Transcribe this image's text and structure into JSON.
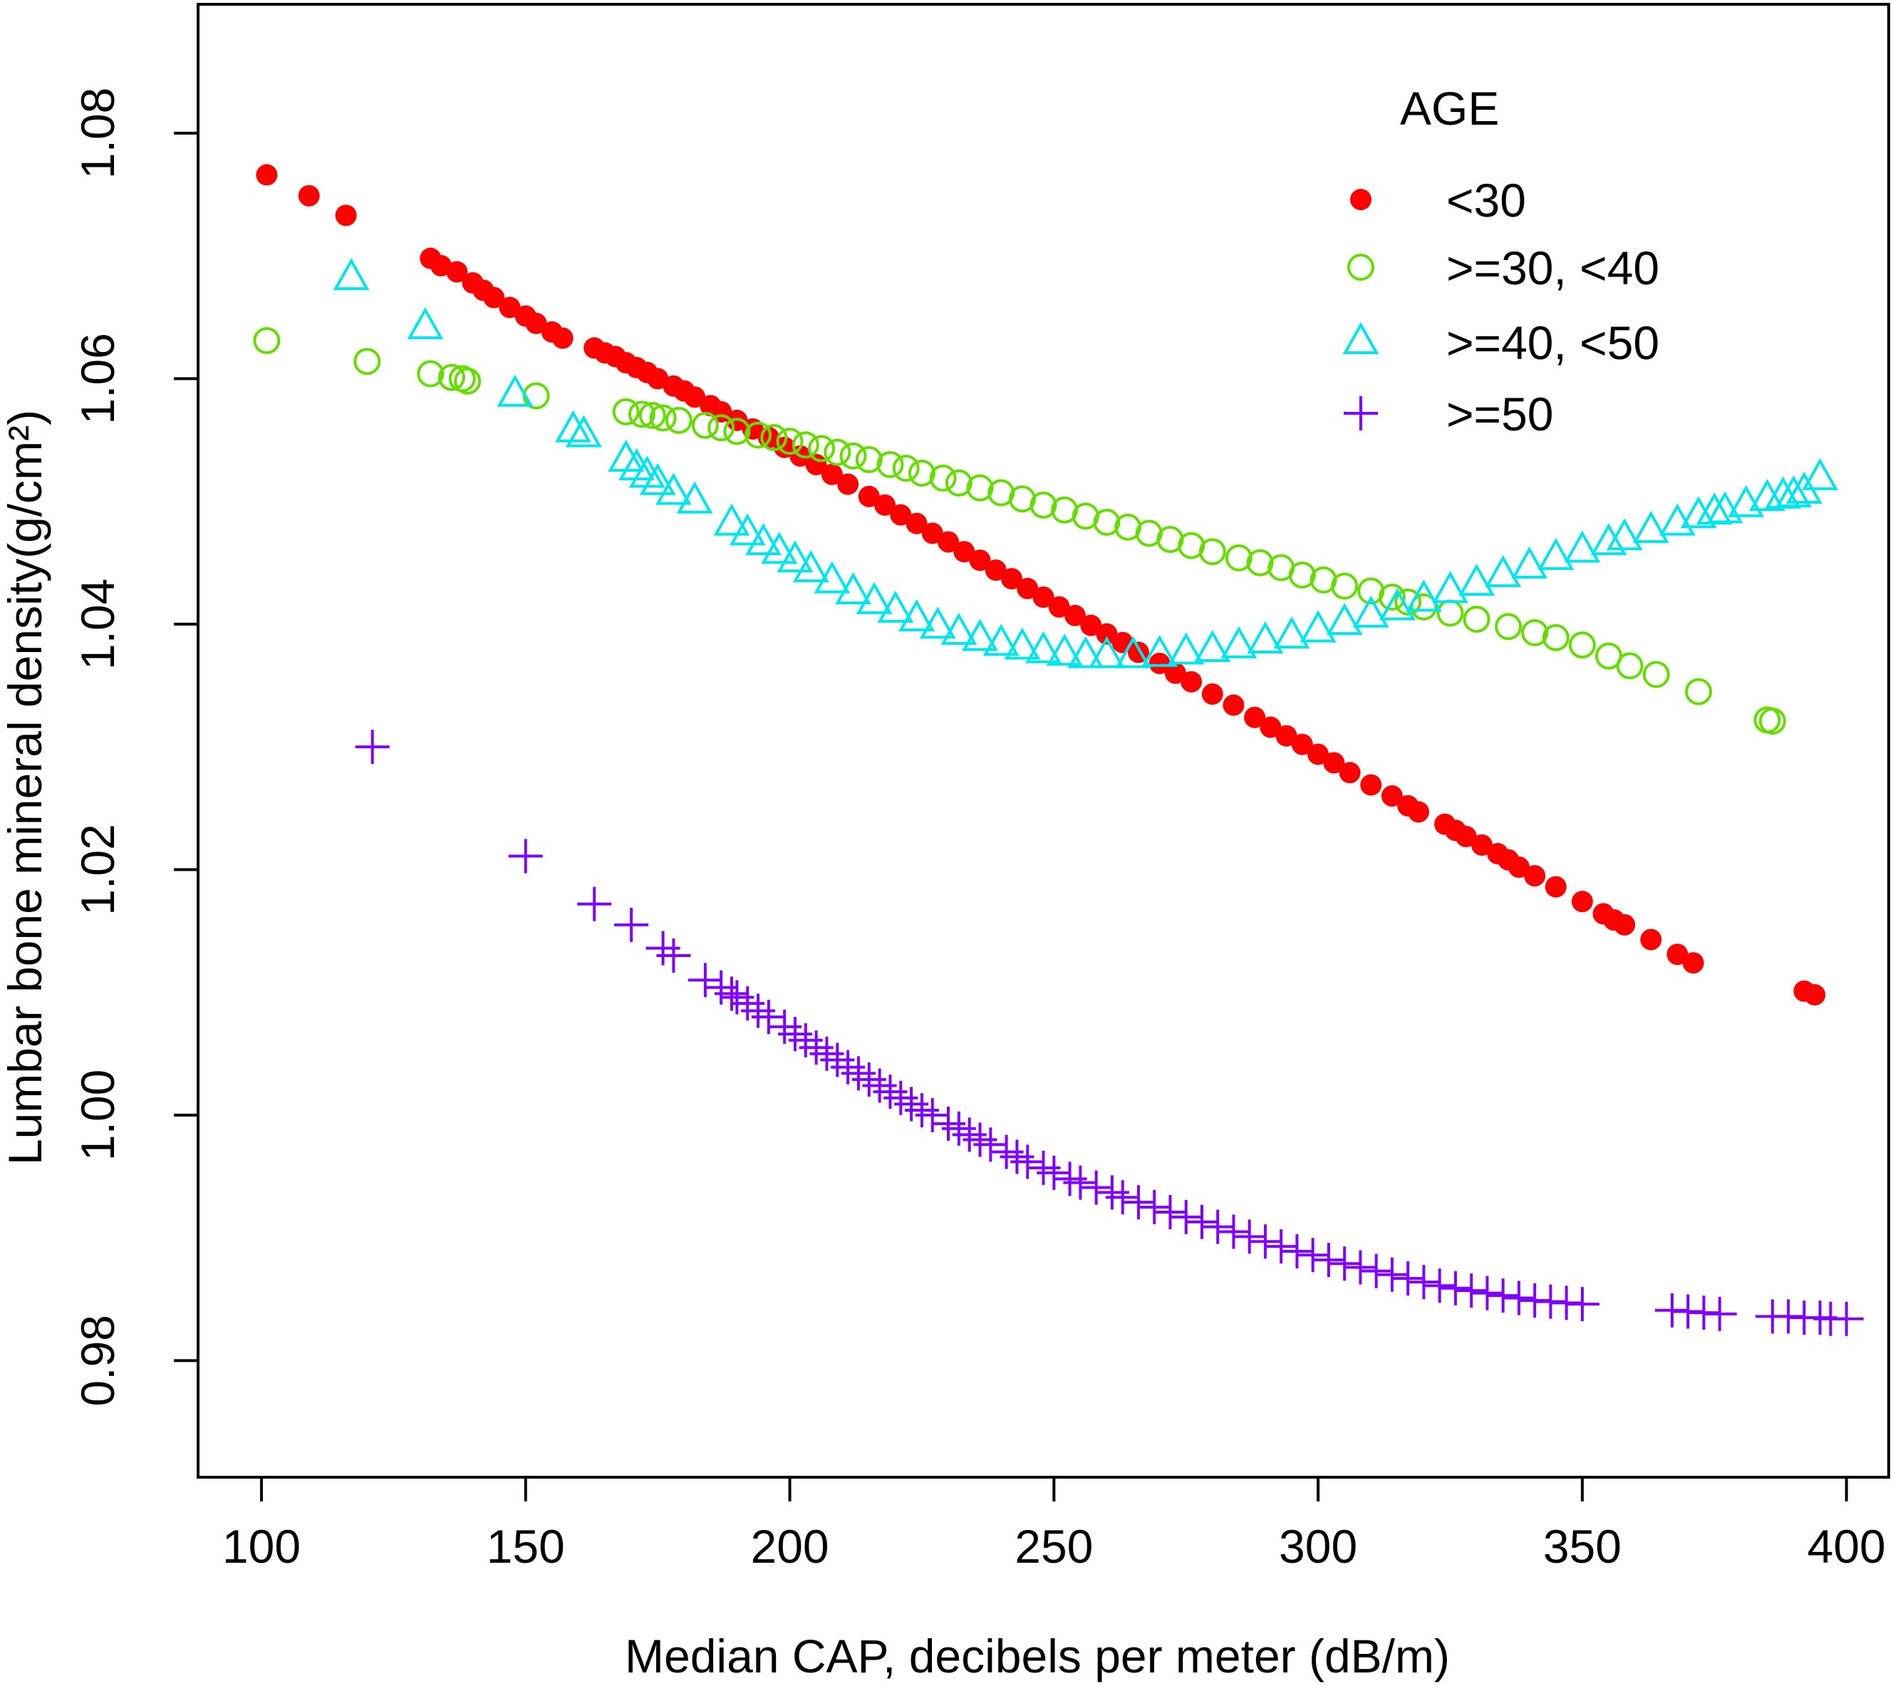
{
  "chart_data": {
    "type": "scatter",
    "title": "",
    "xlabel": "Median CAP, decibels per meter (dB/m)",
    "ylabel": "Lumbar bone mineral density(g/cm²)",
    "xlim": [
      88,
      408
    ],
    "ylim": [
      0.9705,
      1.0905
    ],
    "x_ticks": [
      100,
      150,
      200,
      250,
      300,
      350,
      400
    ],
    "x_tick_labels": [
      "100",
      "150",
      "200",
      "250",
      "300",
      "350",
      "400"
    ],
    "y_ticks": [
      0.98,
      1.0,
      1.02,
      1.04,
      1.06,
      1.08
    ],
    "y_tick_labels": [
      "0.98",
      "1.00",
      "1.02",
      "1.04",
      "1.06",
      "1.08"
    ],
    "grid": false,
    "legend": {
      "title": "AGE",
      "position": "top-right",
      "entries": [
        "<30",
        ">=30, <40",
        ">=40, <50",
        ">=50"
      ]
    },
    "series": [
      {
        "name": "<30",
        "marker": "filled-circle",
        "color": "#ff0000",
        "x": [
          101,
          109,
          116,
          132,
          134,
          137,
          140,
          142,
          144,
          147,
          150,
          152,
          155,
          157,
          163,
          165,
          167,
          169,
          171,
          173,
          175,
          178,
          180,
          182,
          185,
          187,
          190,
          193,
          196,
          199,
          202,
          205,
          208,
          211,
          215,
          218,
          221,
          224,
          227,
          230,
          233,
          236,
          239,
          242,
          245,
          248,
          251,
          254,
          257,
          260,
          263,
          266,
          270,
          273,
          276,
          280,
          284,
          288,
          291,
          294,
          297,
          300,
          303,
          306,
          310,
          314,
          317,
          319,
          324,
          326,
          328,
          331,
          334,
          336,
          338,
          341,
          345,
          350,
          354,
          356,
          358,
          363,
          368,
          371,
          392,
          394
        ],
        "values": [
          1.0766,
          1.0749,
          1.0733,
          1.0698,
          1.0692,
          1.0687,
          1.0678,
          1.0672,
          1.0666,
          1.0658,
          1.0651,
          1.0645,
          1.0638,
          1.0633,
          1.0625,
          1.0621,
          1.0618,
          1.0613,
          1.0609,
          1.0605,
          1.06,
          1.0594,
          1.059,
          1.0585,
          1.0578,
          1.0573,
          1.0566,
          1.0559,
          1.0552,
          1.0544,
          1.0537,
          1.053,
          1.0522,
          1.0514,
          1.0504,
          1.0497,
          1.0489,
          1.0482,
          1.0474,
          1.0467,
          1.0459,
          1.0452,
          1.0444,
          1.0437,
          1.0429,
          1.0422,
          1.0414,
          1.0407,
          1.0399,
          1.0392,
          1.0385,
          1.0377,
          1.0368,
          1.036,
          1.0353,
          1.0343,
          1.0334,
          1.0324,
          1.0316,
          1.0309,
          1.0302,
          1.0294,
          1.0287,
          1.0279,
          1.0269,
          1.026,
          1.0252,
          1.0247,
          1.0237,
          1.0232,
          1.0227,
          1.022,
          1.0213,
          1.0208,
          1.0202,
          1.0195,
          1.0186,
          1.0174,
          1.0164,
          1.0159,
          1.0155,
          1.0143,
          1.0131,
          1.0124,
          1.0101,
          1.0098
        ]
      },
      {
        "name": ">=30, <40",
        "marker": "open-circle",
        "color": "#66dd00",
        "x": [
          101,
          120,
          132,
          136,
          138,
          139,
          152,
          169,
          172,
          174,
          176,
          179,
          184,
          187,
          190,
          194,
          197,
          200,
          203,
          206,
          209,
          212,
          215,
          219,
          222,
          225,
          229,
          232,
          236,
          240,
          244,
          248,
          252,
          256,
          260,
          264,
          268,
          272,
          276,
          280,
          285,
          289,
          293,
          297,
          301,
          305,
          310,
          314,
          317,
          320,
          325,
          330,
          336,
          341,
          345,
          350,
          355,
          359,
          364,
          372,
          385,
          386
        ],
        "values": [
          1.0631,
          1.0614,
          1.0604,
          1.0601,
          1.06,
          1.0598,
          1.0586,
          1.0573,
          1.0571,
          1.057,
          1.0568,
          1.0566,
          1.0562,
          1.056,
          1.0557,
          1.0554,
          1.0552,
          1.0549,
          1.0546,
          1.0543,
          1.054,
          1.0537,
          1.0534,
          1.053,
          1.0527,
          1.0523,
          1.0519,
          1.0515,
          1.0511,
          1.0507,
          1.0502,
          1.0497,
          1.0493,
          1.0488,
          1.0483,
          1.0479,
          1.0474,
          1.0469,
          1.0464,
          1.0459,
          1.0454,
          1.045,
          1.0446,
          1.044,
          1.0436,
          1.0431,
          1.0427,
          1.0422,
          1.0418,
          1.0414,
          1.0409,
          1.0404,
          1.0398,
          1.0393,
          1.0389,
          1.0383,
          1.0374,
          1.0366,
          1.0359,
          1.0345,
          1.0322,
          1.0321
        ]
      },
      {
        "name": ">=40, <50",
        "marker": "open-triangle",
        "color": "#00e5ee",
        "x": [
          117,
          131,
          148,
          159,
          161,
          169,
          171,
          173,
          175,
          178,
          182,
          189,
          192,
          195,
          198,
          201,
          204,
          208,
          212,
          216,
          220,
          224,
          228,
          232,
          236,
          240,
          244,
          248,
          252,
          256,
          260,
          265,
          270,
          275,
          280,
          285,
          290,
          295,
          300,
          305,
          310,
          315,
          320,
          325,
          330,
          335,
          340,
          345,
          350,
          355,
          358,
          363,
          368,
          372,
          375,
          377,
          381,
          385,
          388,
          390,
          392,
          395
        ],
        "values": [
          1.0682,
          1.0642,
          1.0587,
          1.0558,
          1.0554,
          1.0534,
          1.0527,
          1.0521,
          1.0515,
          1.0507,
          1.05,
          1.0482,
          1.0474,
          1.0466,
          1.0459,
          1.0452,
          1.0444,
          1.0435,
          1.0426,
          1.0418,
          1.0411,
          1.0404,
          1.0398,
          1.0393,
          1.0388,
          1.0384,
          1.0381,
          1.0378,
          1.0376,
          1.0374,
          1.0374,
          1.0374,
          1.0375,
          1.0377,
          1.0379,
          1.0382,
          1.0386,
          1.039,
          1.0395,
          1.0401,
          1.0407,
          1.0413,
          1.042,
          1.0427,
          1.0433,
          1.044,
          1.0447,
          1.0454,
          1.046,
          1.0466,
          1.047,
          1.0476,
          1.0482,
          1.0488,
          1.0491,
          1.0492,
          1.0497,
          1.0502,
          1.0504,
          1.0505,
          1.0508,
          1.0519
        ]
      },
      {
        "name": ">=50",
        "marker": "plus",
        "color": "#8000ff",
        "x": [
          121,
          150,
          163,
          170,
          176,
          178,
          184,
          187,
          189,
          190,
          192,
          194,
          196,
          199,
          201,
          203,
          205,
          207,
          209,
          211,
          213,
          215,
          217,
          219,
          221,
          223,
          225,
          227,
          230,
          232,
          234,
          236,
          238,
          241,
          243,
          245,
          248,
          250,
          253,
          255,
          258,
          261,
          263,
          266,
          269,
          272,
          275,
          278,
          281,
          284,
          287,
          290,
          293,
          296,
          299,
          302,
          305,
          308,
          311,
          314,
          317,
          320,
          323,
          326,
          329,
          332,
          335,
          338,
          341,
          344,
          347,
          350,
          367,
          370,
          373,
          376,
          386,
          389,
          392,
          395,
          397,
          400
        ],
        "values": [
          1.03,
          1.0211,
          1.0172,
          1.0155,
          1.0136,
          1.013,
          1.011,
          1.0104,
          1.0099,
          1.0096,
          1.0091,
          1.0085,
          1.008,
          1.0072,
          1.0066,
          1.0061,
          1.0055,
          1.005,
          1.0045,
          1.0039,
          1.0034,
          1.0029,
          1.0024,
          1.0019,
          1.0014,
          1.0009,
          1.0004,
          1.0,
          0.9993,
          0.9989,
          0.9984,
          0.998,
          0.9976,
          0.997,
          0.9966,
          0.9962,
          0.9957,
          0.9953,
          0.9948,
          0.9945,
          0.9941,
          0.9937,
          0.9933,
          0.9929,
          0.9925,
          0.9921,
          0.9917,
          0.9913,
          0.9909,
          0.9905,
          0.9901,
          0.9897,
          0.9893,
          0.9889,
          0.9886,
          0.9882,
          0.9879,
          0.9876,
          0.9873,
          0.987,
          0.9867,
          0.9864,
          0.9861,
          0.9859,
          0.9857,
          0.9855,
          0.9853,
          0.9851,
          0.9849,
          0.9848,
          0.9847,
          0.9846,
          0.9841,
          0.984,
          0.9839,
          0.9838,
          0.9836,
          0.9836,
          0.9835,
          0.9835,
          0.9834,
          0.9834
        ]
      }
    ]
  }
}
